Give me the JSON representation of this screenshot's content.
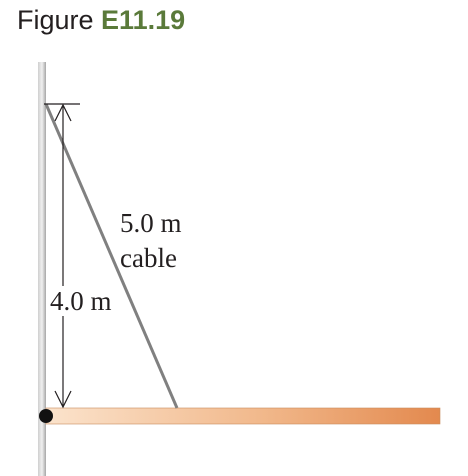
{
  "figure": {
    "label": "Figure",
    "number": "E11.19"
  },
  "diagram": {
    "cable_length_label": "5.0 m",
    "cable_word": "cable",
    "height_label": "4.0 m"
  },
  "colors": {
    "figure_number": "#5a7a3a",
    "cable": "#808080",
    "wall": "#a6a6a6",
    "beam_light": "#fbe3cc",
    "beam_dark": "#e3894e",
    "pivot": "#111111"
  }
}
